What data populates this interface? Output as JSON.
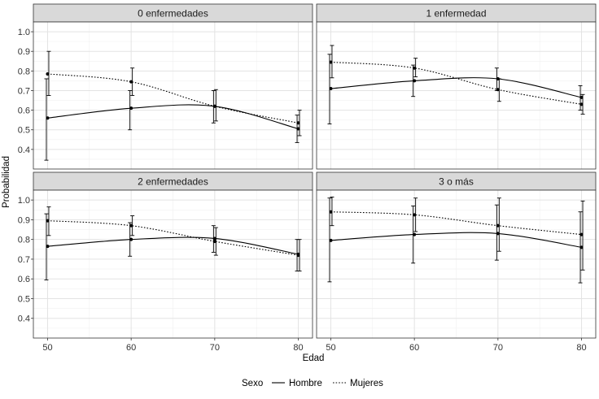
{
  "chart_data": {
    "type": "line",
    "xlabel": "Edad",
    "ylabel": "Probabilidad",
    "x": [
      50,
      60,
      70,
      80
    ],
    "x_ticks": [
      "50",
      "60",
      "70",
      "80"
    ],
    "ylim": [
      0.3,
      1.05
    ],
    "y_ticks": [
      "0.4",
      "0.5",
      "0.6",
      "0.7",
      "0.8",
      "0.9",
      "1.0"
    ],
    "legend": {
      "title": "Sexo",
      "position": "bottom",
      "entries": [
        {
          "name": "Hombre",
          "style": "solid"
        },
        {
          "name": "Mujeres",
          "style": "dotted"
        }
      ]
    },
    "panels": [
      {
        "title": "0 enfermedades",
        "series": [
          {
            "name": "Hombre",
            "values": [
              0.56,
              0.61,
              0.62,
              0.505
            ],
            "lower": [
              0.345,
              0.5,
              0.535,
              0.435
            ],
            "upper": [
              0.76,
              0.7,
              0.7,
              0.575
            ]
          },
          {
            "name": "Mujeres",
            "values": [
              0.785,
              0.745,
              0.62,
              0.535
            ],
            "lower": [
              0.675,
              0.675,
              0.545,
              0.47
            ],
            "upper": [
              0.9,
              0.815,
              0.705,
              0.6
            ]
          }
        ]
      },
      {
        "title": "1 enfermedad",
        "series": [
          {
            "name": "Hombre",
            "values": [
              0.71,
              0.75,
              0.76,
              0.665
            ],
            "lower": [
              0.53,
              0.67,
              0.7,
              0.6
            ],
            "upper": [
              0.885,
              0.83,
              0.815,
              0.725
            ]
          },
          {
            "name": "Mujeres",
            "values": [
              0.845,
              0.815,
              0.705,
              0.63
            ],
            "lower": [
              0.765,
              0.77,
              0.645,
              0.58
            ],
            "upper": [
              0.93,
              0.865,
              0.76,
              0.68
            ]
          }
        ]
      },
      {
        "title": "2 enfermedades",
        "series": [
          {
            "name": "Hombre",
            "values": [
              0.765,
              0.8,
              0.805,
              0.725
            ],
            "lower": [
              0.595,
              0.715,
              0.735,
              0.64
            ],
            "upper": [
              0.93,
              0.885,
              0.87,
              0.8
            ]
          },
          {
            "name": "Mujeres",
            "values": [
              0.895,
              0.87,
              0.79,
              0.72
            ],
            "lower": [
              0.82,
              0.82,
              0.72,
              0.64
            ],
            "upper": [
              0.965,
              0.92,
              0.86,
              0.8
            ]
          }
        ]
      },
      {
        "title": "3 o más",
        "series": [
          {
            "name": "Hombre",
            "values": [
              0.795,
              0.825,
              0.83,
              0.76
            ],
            "lower": [
              0.585,
              0.68,
              0.695,
              0.58
            ],
            "upper": [
              1.01,
              0.97,
              0.975,
              0.94
            ]
          },
          {
            "name": "Mujeres",
            "values": [
              0.94,
              0.925,
              0.87,
              0.825
            ],
            "lower": [
              0.87,
              0.84,
              0.74,
              0.645
            ],
            "upper": [
              1.015,
              1.01,
              1.01,
              0.995
            ]
          }
        ]
      }
    ]
  }
}
